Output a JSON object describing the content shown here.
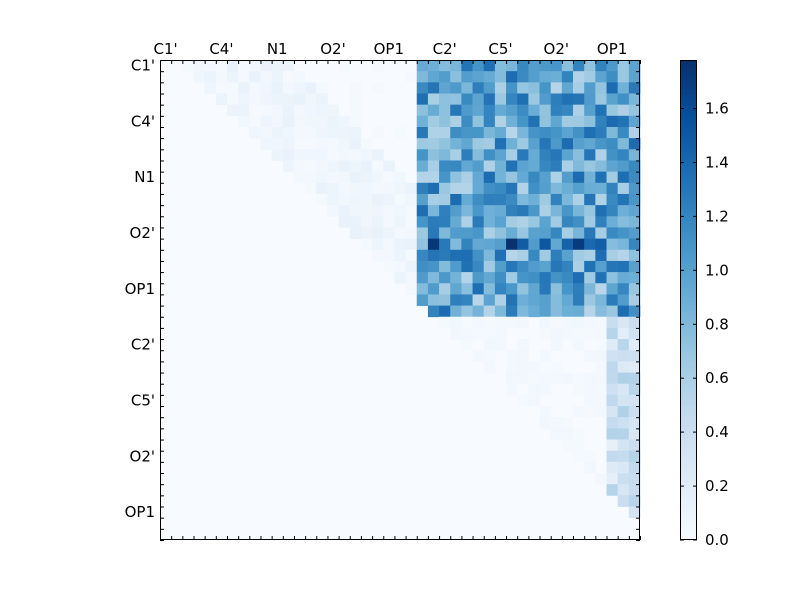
{
  "chart_data": {
    "type": "heatmap",
    "title": "",
    "xlabel": "",
    "ylabel": "",
    "size": 43,
    "x_tick_labels": [
      "C1'",
      "C4'",
      "N1",
      "O2'",
      "OP1",
      "C2'",
      "C5'",
      "O2'",
      "OP1"
    ],
    "y_tick_labels": [
      "C1'",
      "C4'",
      "N1",
      "O2'",
      "OP1",
      "C2'",
      "C5'",
      "O2'",
      "OP1"
    ],
    "colorbar": {
      "range": [
        0,
        1.78
      ],
      "tick_labels": [
        "0.0",
        "0.2",
        "0.4",
        "0.6",
        "0.8",
        "1.0",
        "1.2",
        "1.4",
        "1.6"
      ],
      "tick_values": [
        0.0,
        0.2,
        0.4,
        0.6,
        0.8,
        1.0,
        1.2,
        1.4,
        1.6
      ],
      "colormap": "Blues",
      "colors": [
        "#f7fbff",
        "#deebf7",
        "#c6dbef",
        "#9ecae1",
        "#6baed6",
        "#4292c6",
        "#2171b5",
        "#08519c",
        "#08306b"
      ]
    },
    "block_values": {
      "upper_left_triangle": 0.05,
      "upper_right_block": 0.95,
      "lower_right_triangle": 0.15
    }
  }
}
